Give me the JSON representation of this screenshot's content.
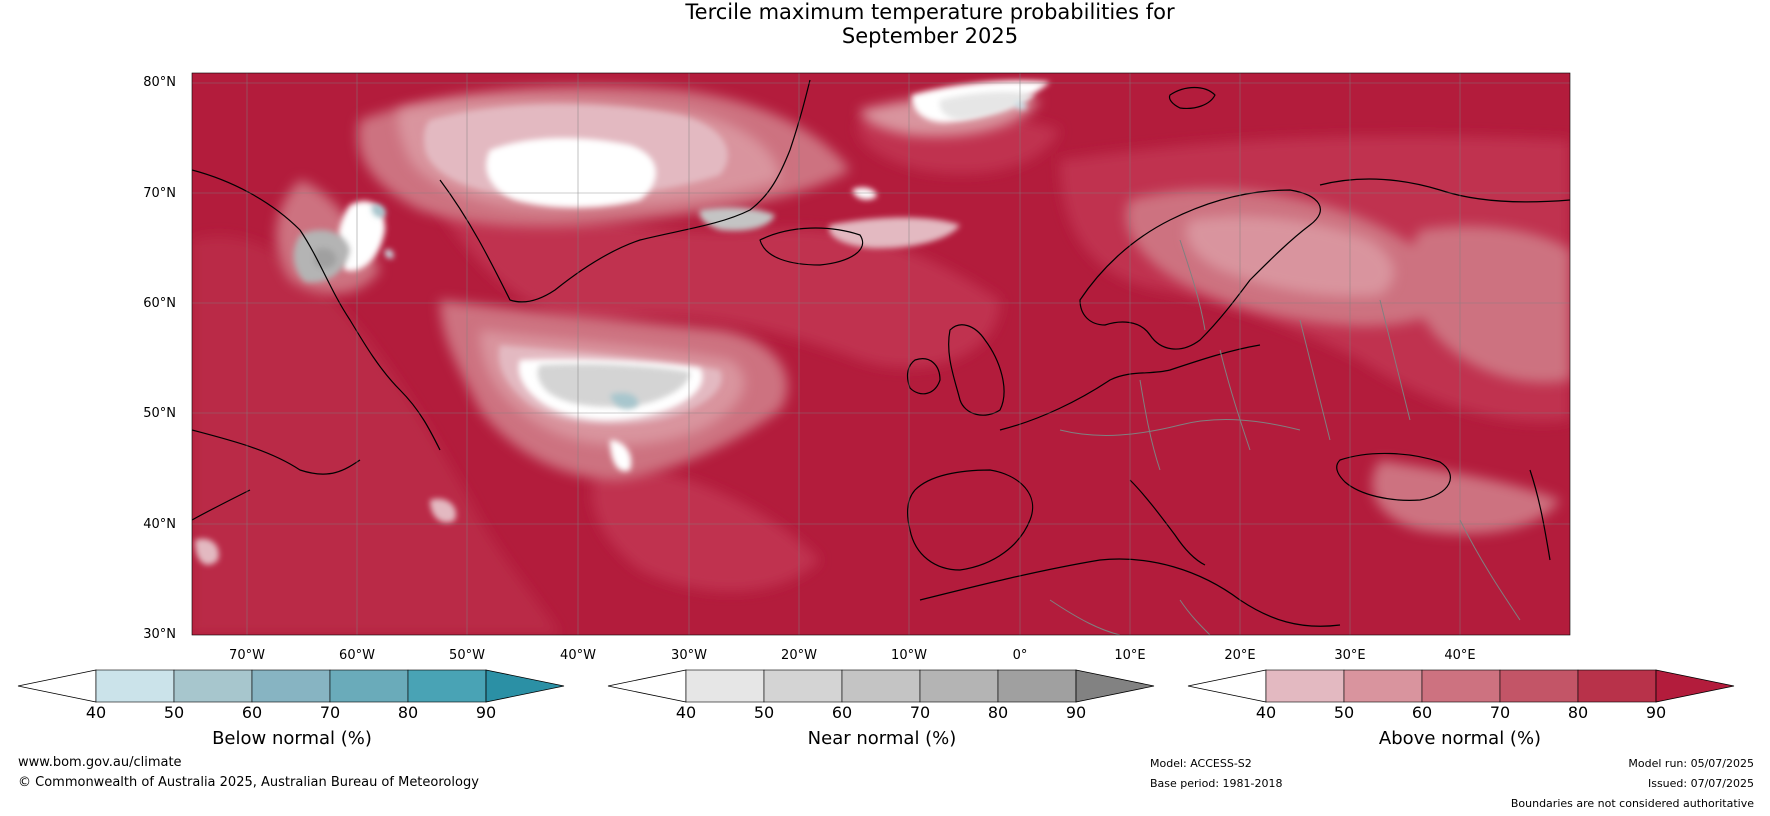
{
  "title": {
    "line1": "Tercile maximum temperature probabilities for",
    "line2": "September 2025"
  },
  "map": {
    "latitude_labels": [
      "80°N",
      "70°N",
      "60°N",
      "50°N",
      "40°N",
      "30°N"
    ],
    "longitude_labels": [
      "70°W",
      "60°W",
      "50°W",
      "40°W",
      "30°W",
      "20°W",
      "10°W",
      "0°",
      "10°E",
      "20°E",
      "30°E",
      "40°E"
    ],
    "dominant_category": "Above normal",
    "dominant_probability_band": "80-90",
    "line_colors": {
      "coastline": "#000000",
      "borders": "#808080",
      "gridlines": "#808080"
    }
  },
  "colorbars": [
    {
      "title": "Below normal (%)",
      "tick_labels": [
        "40",
        "50",
        "60",
        "70",
        "80",
        "90"
      ],
      "colors": [
        "#ffffff",
        "#cbe3ea",
        "#a7c6cd",
        "#87b4c2",
        "#6aabba",
        "#49a3b5",
        "#2b90a5"
      ]
    },
    {
      "title": "Near normal (%)",
      "tick_labels": [
        "40",
        "50",
        "60",
        "70",
        "80",
        "90"
      ],
      "colors": [
        "#ffffff",
        "#e6e6e6",
        "#d4d4d4",
        "#c4c4c4",
        "#b4b4b4",
        "#a0a0a0",
        "#828282"
      ]
    },
    {
      "title": "Above normal (%)",
      "tick_labels": [
        "40",
        "50",
        "60",
        "70",
        "80",
        "90"
      ],
      "colors": [
        "#ffffff",
        "#e3b9c1",
        "#d9949e",
        "#cd7280",
        "#c35567",
        "#b8324a",
        "#b31c3c"
      ]
    }
  ],
  "footer": {
    "website": "www.bom.gov.au/climate",
    "copyright": "© Commonwealth of Australia 2025, Australian Bureau of Meteorology",
    "model": "Model: ACCESS-S2",
    "base_period": "Base period: 1981-2018",
    "model_run": "Model run: 05/07/2025",
    "issued": "Issued: 07/07/2025",
    "disclaimer": "Boundaries are not considered authoritative"
  }
}
